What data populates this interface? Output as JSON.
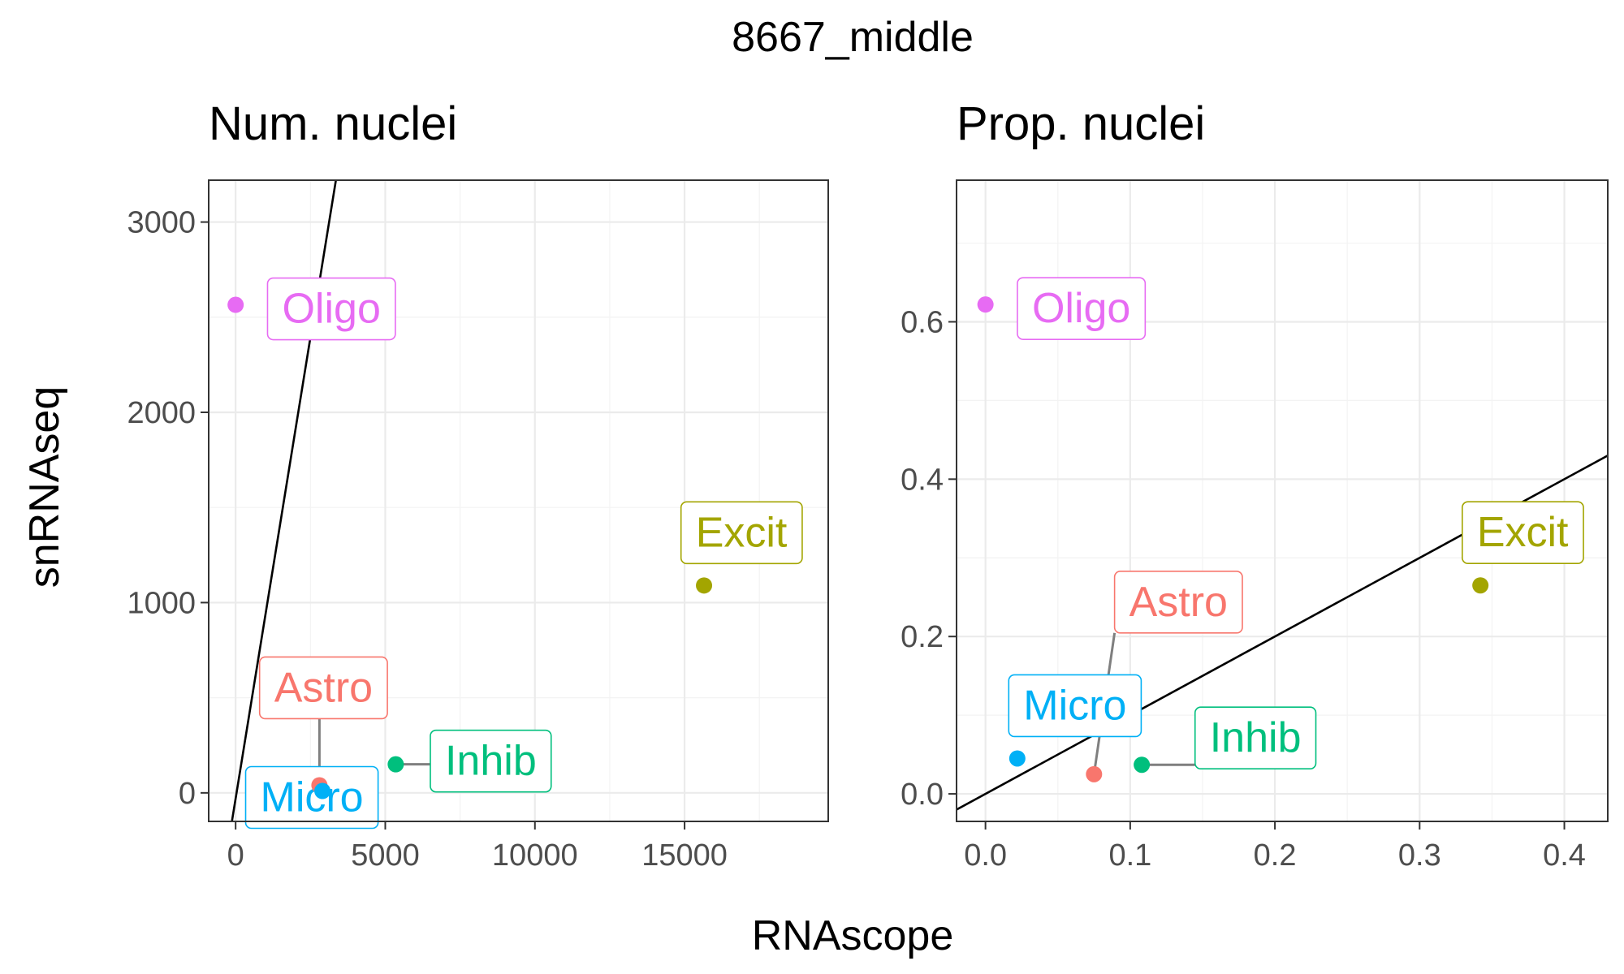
{
  "chart_data": {
    "title": "8667_middle",
    "xlabel": "RNAscope",
    "ylabel": "snRNAseq",
    "colors": {
      "Astro": "#F8766D",
      "Excit": "#A3A500",
      "Inhib": "#00BF7D",
      "Micro": "#00B0F6",
      "Oligo": "#E76BF3"
    },
    "panels": [
      {
        "type": "scatter",
        "title": "Num. nuclei",
        "xlim": [
          -900,
          19800
        ],
        "ylim": [
          -150,
          3220
        ],
        "xticks": [
          0,
          5000,
          10000,
          15000
        ],
        "xtick_labels": [
          "0",
          "5000",
          "10000",
          "15000"
        ],
        "yticks": [
          0,
          1000,
          2000,
          3000
        ],
        "ytick_labels": [
          "0",
          "1000",
          "2000",
          "3000"
        ],
        "fit_line": {
          "slope": 0.97,
          "intercept": -30
        },
        "points": [
          {
            "label": "Oligo",
            "x": 0,
            "y": 2565
          },
          {
            "label": "Excit",
            "x": 15650,
            "y": 1090
          },
          {
            "label": "Astro",
            "x": 2800,
            "y": 40
          },
          {
            "label": "Micro",
            "x": 2900,
            "y": 10
          },
          {
            "label": "Inhib",
            "x": 5350,
            "y": 150
          }
        ]
      },
      {
        "type": "scatter",
        "title": "Prop. nuclei",
        "xlim": [
          -0.02,
          0.43
        ],
        "ylim": [
          -0.035,
          0.78
        ],
        "xticks": [
          0.0,
          0.1,
          0.2,
          0.3,
          0.4
        ],
        "xtick_labels": [
          "0.0",
          "0.1",
          "0.2",
          "0.3",
          "0.4"
        ],
        "yticks": [
          0.0,
          0.2,
          0.4,
          0.6
        ],
        "ytick_labels": [
          "0.0",
          "0.2",
          "0.4",
          "0.6"
        ],
        "fit_line": {
          "slope": 1.0,
          "intercept": 0.0
        },
        "points": [
          {
            "label": "Oligo",
            "x": 0.0,
            "y": 0.622
          },
          {
            "label": "Excit",
            "x": 0.342,
            "y": 0.265
          },
          {
            "label": "Astro",
            "x": 0.075,
            "y": 0.025
          },
          {
            "label": "Micro",
            "x": 0.022,
            "y": 0.045
          },
          {
            "label": "Inhib",
            "x": 0.108,
            "y": 0.037
          }
        ]
      }
    ]
  }
}
